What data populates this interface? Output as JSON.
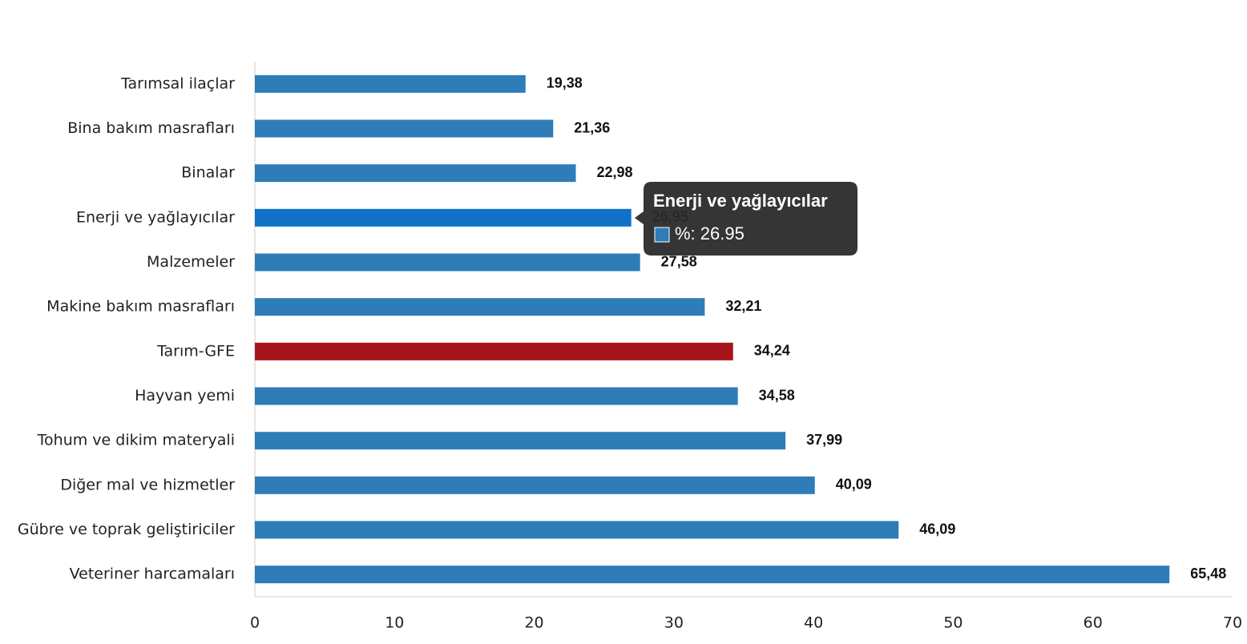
{
  "chart_data": {
    "type": "hbar",
    "categories": [
      "Tarımsal ilaçlar",
      "Bina bakım masrafları",
      "Binalar",
      "Enerji  ve yağlayıcılar",
      "Malzemeler",
      "Makine bakım masrafları",
      "Tarım-GFE",
      "Hayvan yemi",
      "Tohum ve dikim materyali",
      "Diğer mal ve hizmetler",
      "Gübre ve toprak geliştiriciler",
      "Veteriner harcamaları"
    ],
    "values": [
      19.38,
      21.36,
      22.98,
      26.95,
      27.58,
      32.21,
      34.24,
      34.58,
      37.99,
      40.09,
      46.09,
      65.48
    ],
    "value_labels": [
      "19,38",
      "21,36",
      "22,98",
      "26,95",
      "27,58",
      "32,21",
      "34,24",
      "34,58",
      "37,99",
      "40,09",
      "46,09",
      "65,48"
    ],
    "colors": [
      "#2e7cb8",
      "#2e7cb8",
      "#2e7cb8",
      "#0f72c6",
      "#2e7cb8",
      "#2e7cb8",
      "#a8141c",
      "#2e7cb8",
      "#2e7cb8",
      "#2e7cb8",
      "#2e7cb8",
      "#2e7cb8"
    ],
    "xlim": [
      0,
      70
    ],
    "xticks": [
      0,
      10,
      20,
      30,
      40,
      50,
      60,
      70
    ],
    "tooltip": {
      "title": "Enerji  ve yağlayıcılar",
      "text": "%: 26.95",
      "color": "#2e7cb8"
    }
  }
}
